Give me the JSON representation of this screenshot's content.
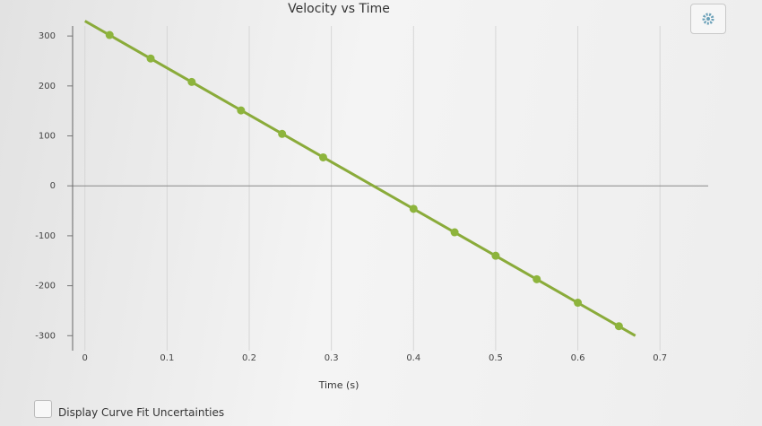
{
  "chart_data": {
    "type": "scatter",
    "title": "Velocity vs Time",
    "x_label": "Time (s)",
    "x": [
      0.03,
      0.08,
      0.13,
      0.19,
      0.24,
      0.29,
      0.4,
      0.45,
      0.5,
      0.55,
      0.6,
      0.65
    ],
    "values": [
      302,
      255,
      208,
      151,
      104,
      57,
      -46,
      -93,
      -140,
      -187,
      -234,
      -281
    ],
    "color": "#8db43c",
    "fit_line": {
      "x": [
        0.0,
        0.67
      ],
      "y": [
        330,
        -300
      ],
      "color": "#8aab3a"
    },
    "xlim": [
      -0.015,
      0.75
    ],
    "ylim": [
      -330,
      320
    ],
    "xticks": [
      0,
      0.1,
      0.2,
      0.3,
      0.4,
      0.5,
      0.6,
      0.7
    ],
    "yticks": [
      -300,
      -200,
      -100,
      0,
      100,
      200,
      300
    ],
    "grid": true
  },
  "controls": {
    "checkbox_label": "Display Curve Fit Uncertainties"
  }
}
